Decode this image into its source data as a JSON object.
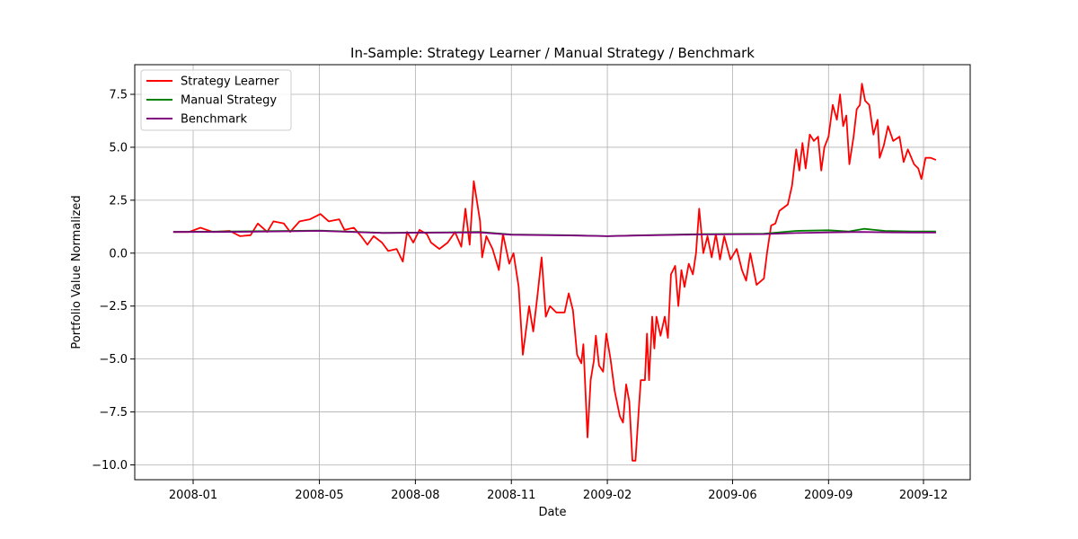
{
  "chart_data": {
    "type": "line",
    "title": "In-Sample: Strategy Learner / Manual Strategy / Benchmark",
    "xlabel": "Date",
    "ylabel": "Portfolio Value Normalized",
    "x_ticks": [
      "2008-01",
      "2008-05",
      "2008-08",
      "2008-11",
      "2009-02",
      "2009-06",
      "2009-09",
      "2009-12"
    ],
    "y_ticks": [
      "7.5",
      "5.0",
      "2.5",
      "0.0",
      "−2.5",
      "−5.0",
      "−7.5",
      "−10.0"
    ],
    "ylim": [
      -10.7,
      8.9
    ],
    "grid": true,
    "legend_position": "upper-left",
    "series": [
      {
        "name": "Strategy Learner",
        "color": "#ff0000",
        "points": [
          [
            "2007-12-13",
            1.0
          ],
          [
            "2007-12-28",
            1.0
          ],
          [
            "2008-01-08",
            1.2
          ],
          [
            "2008-01-20",
            1.0
          ],
          [
            "2008-02-05",
            1.05
          ],
          [
            "2008-02-15",
            0.8
          ],
          [
            "2008-02-25",
            0.85
          ],
          [
            "2008-03-03",
            1.4
          ],
          [
            "2008-03-12",
            1.0
          ],
          [
            "2008-03-18",
            1.5
          ],
          [
            "2008-03-28",
            1.4
          ],
          [
            "2008-04-03",
            1.0
          ],
          [
            "2008-04-12",
            1.5
          ],
          [
            "2008-04-22",
            1.6
          ],
          [
            "2008-05-02",
            1.85
          ],
          [
            "2008-05-10",
            1.5
          ],
          [
            "2008-05-20",
            1.6
          ],
          [
            "2008-05-25",
            1.1
          ],
          [
            "2008-06-03",
            1.2
          ],
          [
            "2008-06-10",
            0.8
          ],
          [
            "2008-06-16",
            0.4
          ],
          [
            "2008-06-22",
            0.8
          ],
          [
            "2008-06-30",
            0.5
          ],
          [
            "2008-07-06",
            0.1
          ],
          [
            "2008-07-14",
            0.2
          ],
          [
            "2008-07-20",
            -0.4
          ],
          [
            "2008-07-24",
            1.0
          ],
          [
            "2008-07-30",
            0.5
          ],
          [
            "2008-08-05",
            1.1
          ],
          [
            "2008-08-12",
            0.9
          ],
          [
            "2008-08-16",
            0.5
          ],
          [
            "2008-08-24",
            0.2
          ],
          [
            "2008-09-01",
            0.5
          ],
          [
            "2008-09-08",
            1.0
          ],
          [
            "2008-09-14",
            0.3
          ],
          [
            "2008-09-18",
            2.1
          ],
          [
            "2008-09-22",
            0.4
          ],
          [
            "2008-09-26",
            3.4
          ],
          [
            "2008-10-02",
            1.5
          ],
          [
            "2008-10-04",
            -0.2
          ],
          [
            "2008-10-08",
            0.8
          ],
          [
            "2008-10-14",
            0.2
          ],
          [
            "2008-10-20",
            -0.8
          ],
          [
            "2008-10-24",
            0.9
          ],
          [
            "2008-10-30",
            -0.5
          ],
          [
            "2008-11-03",
            0.0
          ],
          [
            "2008-11-08",
            -1.6
          ],
          [
            "2008-11-12",
            -4.8
          ],
          [
            "2008-11-18",
            -2.5
          ],
          [
            "2008-11-22",
            -3.7
          ],
          [
            "2008-11-26",
            -2.0
          ],
          [
            "2008-11-30",
            -0.2
          ],
          [
            "2008-12-04",
            -3.0
          ],
          [
            "2008-12-08",
            -2.5
          ],
          [
            "2008-12-14",
            -2.8
          ],
          [
            "2008-12-22",
            -2.8
          ],
          [
            "2008-12-26",
            -1.9
          ],
          [
            "2008-12-30",
            -2.7
          ],
          [
            "2009-01-03",
            -4.8
          ],
          [
            "2009-01-07",
            -5.2
          ],
          [
            "2009-01-09",
            -4.3
          ],
          [
            "2009-01-13",
            -8.7
          ],
          [
            "2009-01-16",
            -6.0
          ],
          [
            "2009-01-19",
            -5.1
          ],
          [
            "2009-01-21",
            -3.9
          ],
          [
            "2009-01-24",
            -5.3
          ],
          [
            "2009-01-28",
            -5.6
          ],
          [
            "2009-01-31",
            -3.8
          ],
          [
            "2009-02-04",
            -5.0
          ],
          [
            "2009-02-08",
            -6.5
          ],
          [
            "2009-02-13",
            -7.7
          ],
          [
            "2009-02-16",
            -8.0
          ],
          [
            "2009-02-19",
            -6.2
          ],
          [
            "2009-02-22",
            -7.0
          ],
          [
            "2009-02-25",
            -9.8
          ],
          [
            "2009-02-28",
            -9.8
          ],
          [
            "2009-03-03",
            -7.5
          ],
          [
            "2009-03-05",
            -6.0
          ],
          [
            "2009-03-09",
            -6.0
          ],
          [
            "2009-03-11",
            -3.8
          ],
          [
            "2009-03-13",
            -6.0
          ],
          [
            "2009-03-16",
            -3.0
          ],
          [
            "2009-03-18",
            -4.5
          ],
          [
            "2009-03-20",
            -3.0
          ],
          [
            "2009-03-24",
            -3.9
          ],
          [
            "2009-03-28",
            -3.0
          ],
          [
            "2009-03-31",
            -4.0
          ],
          [
            "2009-04-03",
            -1.0
          ],
          [
            "2009-04-07",
            -0.6
          ],
          [
            "2009-04-10",
            -2.5
          ],
          [
            "2009-04-13",
            -0.8
          ],
          [
            "2009-04-16",
            -1.6
          ],
          [
            "2009-04-20",
            -0.5
          ],
          [
            "2009-04-24",
            -1.0
          ],
          [
            "2009-04-27",
            0.0
          ],
          [
            "2009-04-30",
            2.1
          ],
          [
            "2009-05-04",
            0.0
          ],
          [
            "2009-05-08",
            0.8
          ],
          [
            "2009-05-12",
            -0.2
          ],
          [
            "2009-05-16",
            0.9
          ],
          [
            "2009-05-20",
            -0.3
          ],
          [
            "2009-05-24",
            0.8
          ],
          [
            "2009-05-30",
            -0.3
          ],
          [
            "2009-06-05",
            0.2
          ],
          [
            "2009-06-10",
            -0.8
          ],
          [
            "2009-06-14",
            -1.3
          ],
          [
            "2009-06-18",
            0.0
          ],
          [
            "2009-06-24",
            -1.5
          ],
          [
            "2009-07-01",
            -1.2
          ],
          [
            "2009-07-04",
            0.0
          ],
          [
            "2009-07-08",
            1.3
          ],
          [
            "2009-07-12",
            1.4
          ],
          [
            "2009-07-16",
            2.0
          ],
          [
            "2009-07-24",
            2.3
          ],
          [
            "2009-07-28",
            3.2
          ],
          [
            "2009-08-01",
            4.9
          ],
          [
            "2009-08-04",
            3.9
          ],
          [
            "2009-08-07",
            5.2
          ],
          [
            "2009-08-10",
            4.0
          ],
          [
            "2009-08-14",
            5.6
          ],
          [
            "2009-08-18",
            5.3
          ],
          [
            "2009-08-22",
            5.5
          ],
          [
            "2009-08-25",
            3.9
          ],
          [
            "2009-08-28",
            5.0
          ],
          [
            "2009-09-01",
            5.5
          ],
          [
            "2009-09-05",
            7.0
          ],
          [
            "2009-09-09",
            6.3
          ],
          [
            "2009-09-12",
            7.5
          ],
          [
            "2009-09-15",
            6.0
          ],
          [
            "2009-09-18",
            6.5
          ],
          [
            "2009-09-21",
            4.2
          ],
          [
            "2009-09-25",
            5.5
          ],
          [
            "2009-09-28",
            6.8
          ],
          [
            "2009-10-01",
            7.0
          ],
          [
            "2009-10-03",
            8.0
          ],
          [
            "2009-10-06",
            7.2
          ],
          [
            "2009-10-10",
            7.0
          ],
          [
            "2009-10-14",
            5.6
          ],
          [
            "2009-10-18",
            6.3
          ],
          [
            "2009-10-20",
            4.5
          ],
          [
            "2009-10-24",
            5.1
          ],
          [
            "2009-10-28",
            6.0
          ],
          [
            "2009-11-02",
            5.3
          ],
          [
            "2009-11-08",
            5.5
          ],
          [
            "2009-11-12",
            4.3
          ],
          [
            "2009-11-16",
            4.9
          ],
          [
            "2009-11-22",
            4.2
          ],
          [
            "2009-11-26",
            4.0
          ],
          [
            "2009-11-29",
            3.5
          ],
          [
            "2009-12-03",
            4.5
          ],
          [
            "2009-12-08",
            4.5
          ],
          [
            "2009-12-13",
            4.4
          ]
        ]
      },
      {
        "name": "Manual Strategy",
        "color": "#008000",
        "points": [
          [
            "2007-12-13",
            1.0
          ],
          [
            "2008-02-01",
            1.02
          ],
          [
            "2008-04-01",
            1.05
          ],
          [
            "2008-05-01",
            1.07
          ],
          [
            "2008-07-01",
            0.96
          ],
          [
            "2008-09-01",
            0.98
          ],
          [
            "2008-10-01",
            1.0
          ],
          [
            "2008-11-01",
            0.88
          ],
          [
            "2009-01-01",
            0.84
          ],
          [
            "2009-02-01",
            0.8
          ],
          [
            "2009-03-01",
            0.84
          ],
          [
            "2009-05-01",
            0.9
          ],
          [
            "2009-07-01",
            0.92
          ],
          [
            "2009-08-01",
            1.05
          ],
          [
            "2009-09-01",
            1.08
          ],
          [
            "2009-09-20",
            1.02
          ],
          [
            "2009-10-05",
            1.15
          ],
          [
            "2009-10-25",
            1.05
          ],
          [
            "2009-11-20",
            1.02
          ],
          [
            "2009-12-13",
            1.02
          ]
        ]
      },
      {
        "name": "Benchmark",
        "color": "#800080",
        "points": [
          [
            "2007-12-13",
            1.0
          ],
          [
            "2008-02-01",
            1.0
          ],
          [
            "2008-04-01",
            1.03
          ],
          [
            "2008-05-01",
            1.05
          ],
          [
            "2008-07-01",
            0.95
          ],
          [
            "2008-09-01",
            0.97
          ],
          [
            "2008-10-01",
            0.98
          ],
          [
            "2008-11-01",
            0.87
          ],
          [
            "2009-01-01",
            0.83
          ],
          [
            "2009-02-01",
            0.8
          ],
          [
            "2009-03-01",
            0.83
          ],
          [
            "2009-05-01",
            0.88
          ],
          [
            "2009-07-01",
            0.9
          ],
          [
            "2009-08-01",
            0.95
          ],
          [
            "2009-09-01",
            0.98
          ],
          [
            "2009-10-01",
            1.0
          ],
          [
            "2009-11-01",
            0.98
          ],
          [
            "2009-12-13",
            0.97
          ]
        ]
      }
    ]
  }
}
